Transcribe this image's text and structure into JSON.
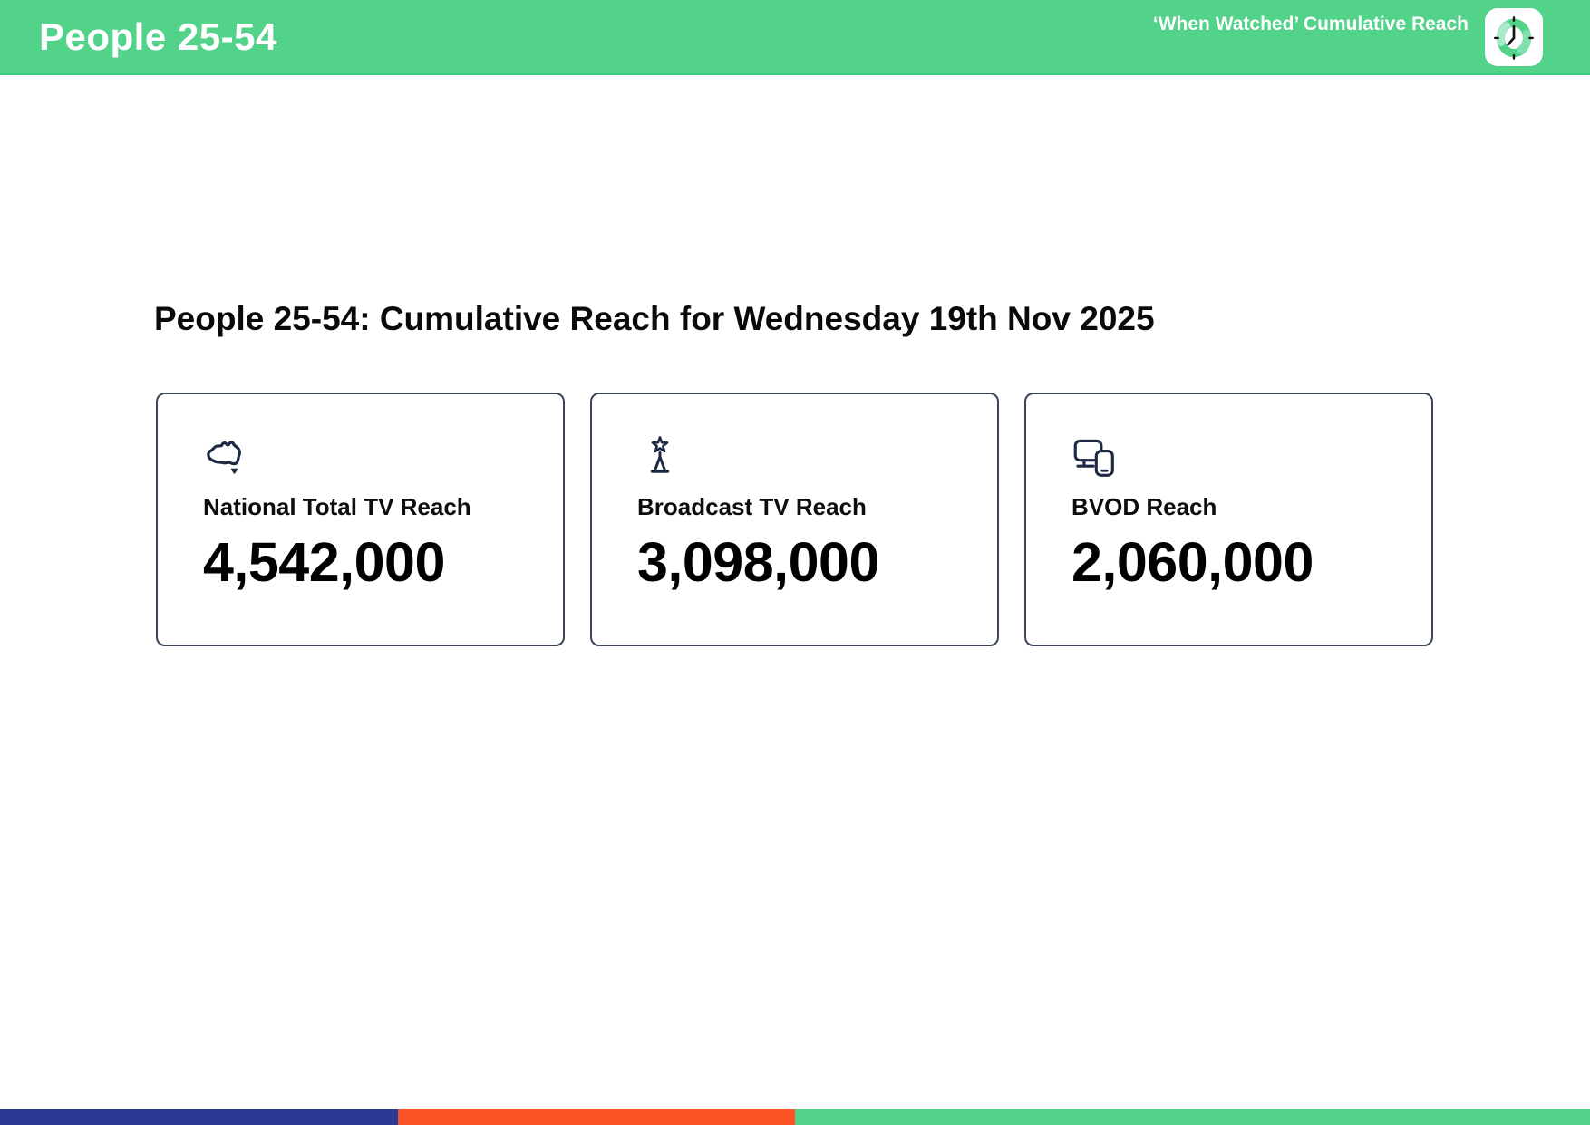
{
  "header": {
    "title": "People 25-54",
    "subtitle": "‘When Watched’ Cumulative Reach",
    "logo": "clock-logo"
  },
  "main": {
    "heading": "People 25-54: Cumulative Reach for Wednesday 19th Nov 2025",
    "cards": [
      {
        "icon": "australia-map-icon",
        "label": "National Total TV Reach",
        "value": "4,542,000"
      },
      {
        "icon": "broadcast-tower-star-icon",
        "label": "Broadcast TV Reach",
        "value": "3,098,000"
      },
      {
        "icon": "tv-and-mobile-devices-icon",
        "label": "BVOD Reach",
        "value": "2,060,000"
      }
    ]
  },
  "footer": {
    "stripes": [
      {
        "color": "#2D3A94",
        "width_pct": 25
      },
      {
        "color": "#FB5226",
        "width_pct": 25
      },
      {
        "color": "#53D28A",
        "width_pct": 50
      }
    ]
  },
  "colors": {
    "header_background": "#53D28A",
    "header_border_bottom": "#47C77E",
    "card_border": "#3A4558",
    "icon_navy": "#1E2A44",
    "logo_ring_green": "#53D28A",
    "logo_ring_light": "#A9EACB",
    "text_black": "#0A0A0A"
  }
}
